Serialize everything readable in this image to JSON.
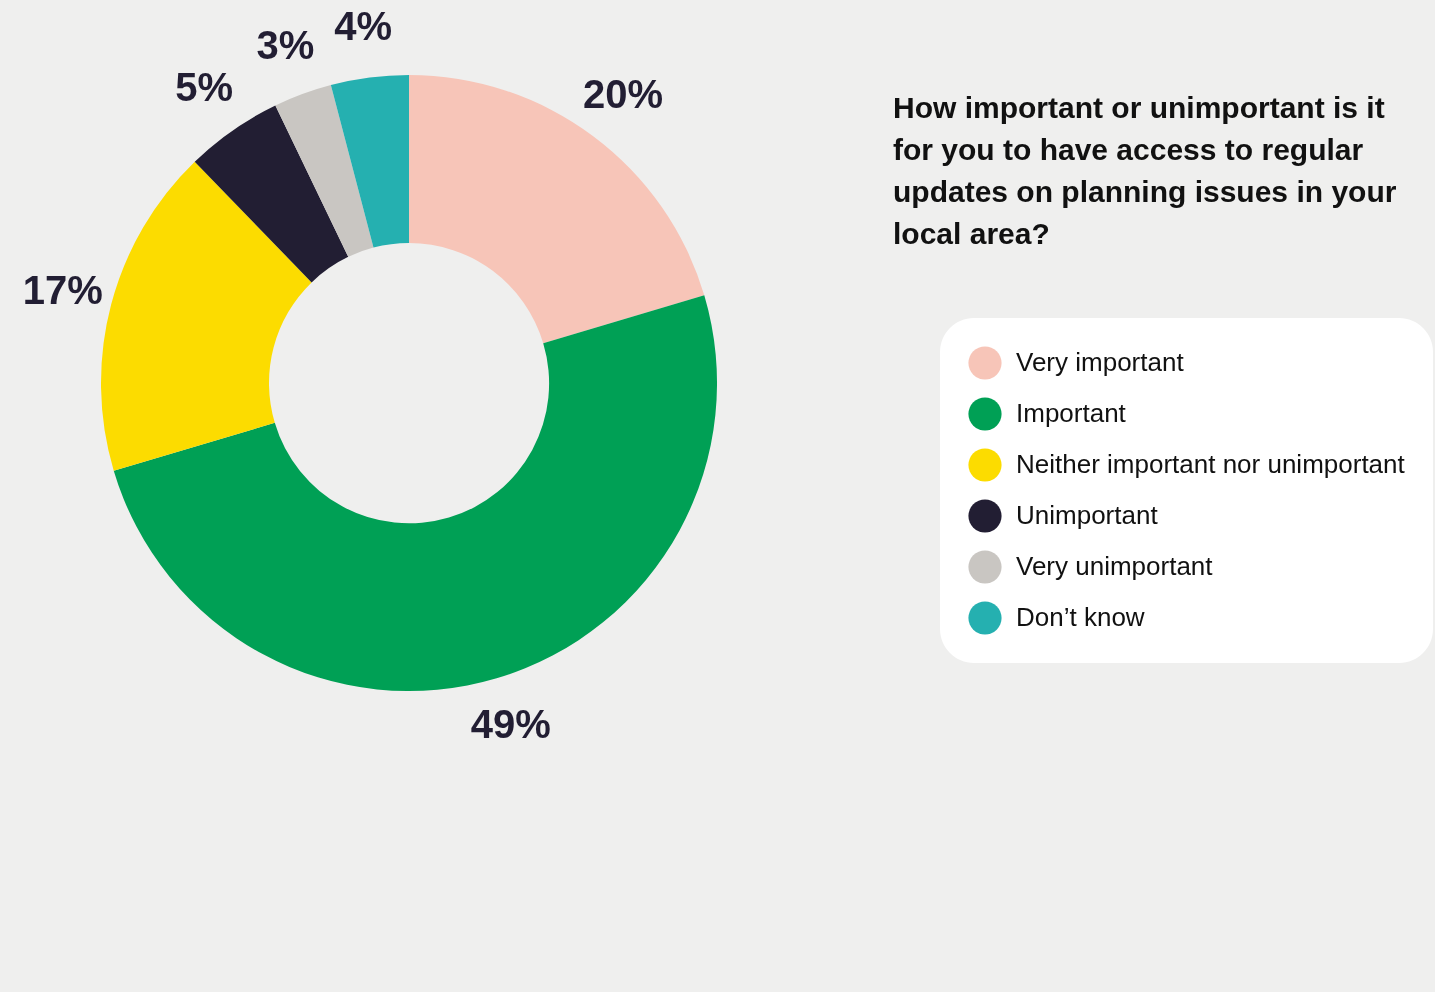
{
  "chart_data": {
    "type": "donut",
    "title": "How important or unimportant is it for you to have access to regular updates on planning issues in your local area?",
    "categories": [
      "Very important",
      "Important",
      "Neither important nor unimportant",
      "Unimportant",
      "Very unimportant",
      "Don’t know"
    ],
    "values": [
      20,
      49,
      17,
      5,
      3,
      4
    ],
    "value_labels": [
      "20%",
      "49%",
      "17%",
      "5%",
      "3%",
      "4%"
    ],
    "colors": [
      "#f7c5b8",
      "#00a055",
      "#fcdc00",
      "#221e33",
      "#c9c6c2",
      "#25b0b0"
    ],
    "legend": "right"
  }
}
